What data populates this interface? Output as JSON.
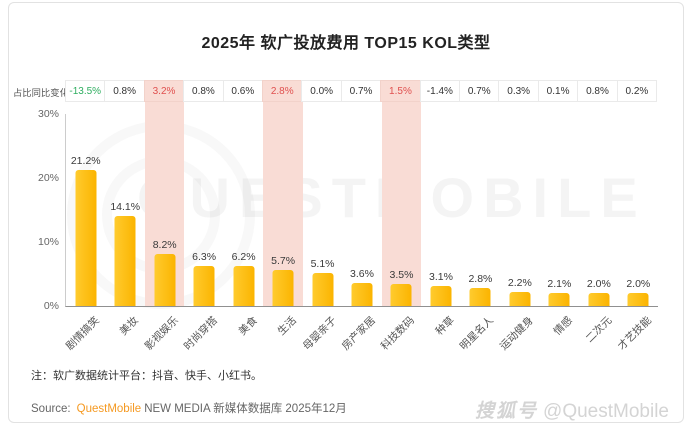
{
  "title": "2025年 软广投放费用 TOP15 KOL类型",
  "yoy": {
    "label": "占比同比变化"
  },
  "chart_data": {
    "type": "bar",
    "title": "2025年 软广投放费用 TOP15 KOL类型",
    "categories": [
      "剧情搞笑",
      "美妆",
      "影视娱乐",
      "时尚穿搭",
      "美食",
      "生活",
      "母婴亲子",
      "房产家居",
      "科技数码",
      "种草",
      "明星名人",
      "运动健身",
      "情感",
      "二次元",
      "才艺技能"
    ],
    "values": [
      21.2,
      14.1,
      8.2,
      6.3,
      6.2,
      5.7,
      5.1,
      3.6,
      3.5,
      3.1,
      2.8,
      2.2,
      2.1,
      2.0,
      2.0
    ],
    "value_labels": [
      "21.2%",
      "14.1%",
      "8.2%",
      "6.3%",
      "6.2%",
      "5.7%",
      "5.1%",
      "3.6%",
      "3.5%",
      "3.1%",
      "2.8%",
      "2.2%",
      "2.1%",
      "2.0%",
      "2.0%"
    ],
    "yoy_changes": [
      "-13.5%",
      "0.8%",
      "3.2%",
      "0.8%",
      "0.6%",
      "2.8%",
      "0.0%",
      "0.7%",
      "1.5%",
      "-1.4%",
      "0.7%",
      "0.3%",
      "0.1%",
      "0.8%",
      "0.2%"
    ],
    "yoy_tones": [
      "green",
      "default",
      "red",
      "default",
      "default",
      "red",
      "default",
      "default",
      "red",
      "default",
      "default",
      "default",
      "default",
      "default",
      "default"
    ],
    "highlighted_indexes": [
      2,
      5,
      8
    ],
    "y_ticks": [
      "30%",
      "20%",
      "10%",
      "0%"
    ],
    "ylim": [
      0,
      30
    ],
    "xlabel": "",
    "ylabel": "",
    "grid": false,
    "legend": "none",
    "bar_color": "#FFC20E",
    "highlight_band_color": "#F9DCD5",
    "negative_color": "#2FAE60",
    "alert_color": "#E0504F"
  },
  "note": "注：软广数据统计平台：抖音、快手、小红书。",
  "source": {
    "prefix": "Source:",
    "brand": "QuestMobile",
    "rest": "NEW MEDIA 新媒体数据库 2025年12月"
  },
  "watermark": {
    "center": "QUESTMOBILE",
    "bottom_right_cn": "搜狐号",
    "bottom_right_handle": "@QuestMobile"
  }
}
